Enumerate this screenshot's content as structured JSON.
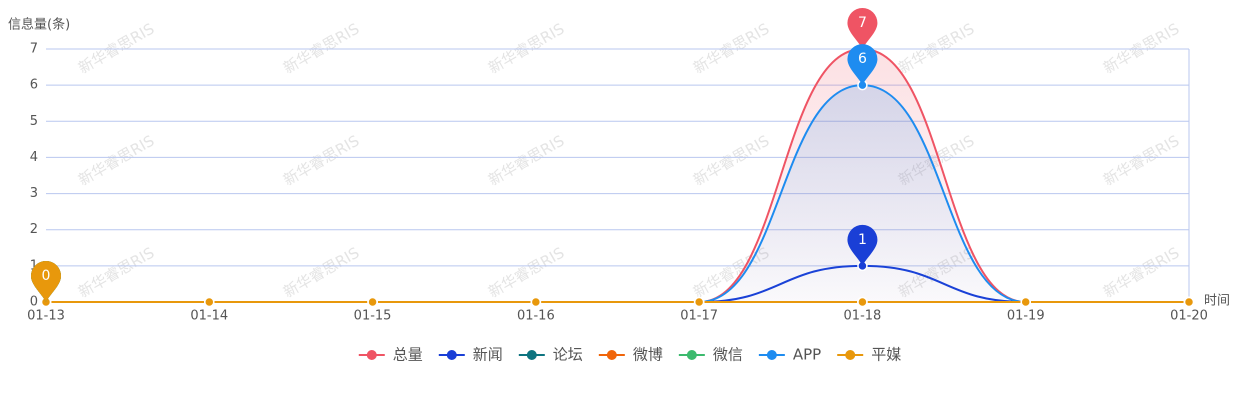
{
  "watermark": "新华睿思RIS",
  "chart_data": {
    "type": "line",
    "ylabel": "信息量(条)",
    "xlabel": "时间",
    "categories": [
      "01-13",
      "01-14",
      "01-15",
      "01-16",
      "01-17",
      "01-18",
      "01-19",
      "01-20"
    ],
    "series": [
      {
        "name": "总量",
        "color": "#ef5464",
        "values": [
          0,
          0,
          0,
          0,
          0,
          7,
          0,
          0
        ],
        "area": true
      },
      {
        "name": "新闻",
        "color": "#1a3fd6",
        "values": [
          0,
          0,
          0,
          0,
          0,
          1,
          0,
          0
        ]
      },
      {
        "name": "论坛",
        "color": "#0e7480",
        "values": [
          0,
          0,
          0,
          0,
          0,
          0,
          0,
          0
        ]
      },
      {
        "name": "微博",
        "color": "#f0650a",
        "values": [
          0,
          0,
          0,
          0,
          0,
          0,
          0,
          0
        ]
      },
      {
        "name": "微信",
        "color": "#3cba6e",
        "values": [
          0,
          0,
          0,
          0,
          0,
          0,
          0,
          0
        ]
      },
      {
        "name": "APP",
        "color": "#1e8cf0",
        "values": [
          0,
          0,
          0,
          0,
          0,
          6,
          0,
          0
        ],
        "area": true
      },
      {
        "name": "平媒",
        "color": "#e8980c",
        "values": [
          0,
          0,
          0,
          0,
          0,
          0,
          0,
          0
        ]
      }
    ],
    "ylim": [
      0,
      7
    ],
    "yticks": [
      0,
      1,
      2,
      3,
      4,
      5,
      6,
      7
    ],
    "grid": true,
    "smooth": true,
    "max_marker": true,
    "legend": "bottom"
  }
}
